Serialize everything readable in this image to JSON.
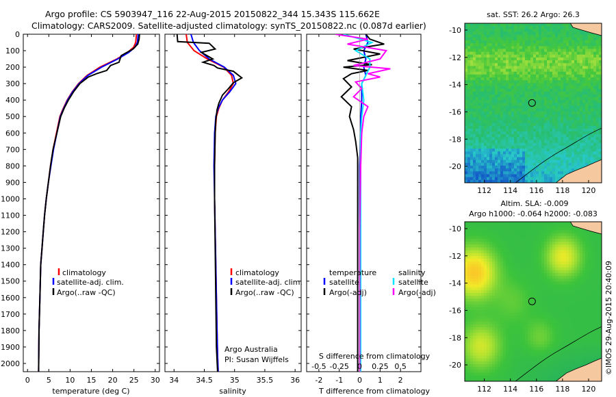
{
  "header": {
    "line1": "Argo profile: CS 5903947_116 22-Aug-2015 20150822_344 15.343S 115.662E",
    "line2": "Climatology: CARS2009. Satellite-adjusted climatology: synTS_20150822.nc (0.087d earlier)"
  },
  "colors": {
    "climatology": "#ff0000",
    "satellite": "#0000ff",
    "argo": "#000000",
    "salinity_satellite": "#00e5ff",
    "salinity_argo": "#ff00ff",
    "land": "#f5c8a0"
  },
  "shared_depth_ticks": [
    "0",
    "100",
    "200",
    "300",
    "400",
    "500",
    "600",
    "700",
    "800",
    "900",
    "1000",
    "1100",
    "1200",
    "1300",
    "1400",
    "1500",
    "1600",
    "1700",
    "1800",
    "1900",
    "2000"
  ],
  "chart_data": [
    {
      "type": "line",
      "id": "temperature-profile",
      "xlabel": "temperature (deg C)",
      "xlim": [
        -1,
        31
      ],
      "ylim": [
        2050,
        0
      ],
      "xticks": [
        "0",
        "5",
        "10",
        "15",
        "20",
        "25",
        "30"
      ],
      "legend": [
        "climatology",
        "satellite-adj. clim.",
        "Argo(..raw -QC)"
      ],
      "legend_placement": "lower-middle",
      "series": [
        {
          "name": "climatology",
          "color": "#ff0000",
          "x": [
            25.6,
            25.4,
            24.9,
            23.5,
            21.0,
            17.0,
            14.0,
            12.0,
            10.5,
            9.3,
            8.4,
            7.6,
            6.8,
            6.0,
            5.4,
            4.9,
            4.4,
            4.0,
            3.7,
            3.4,
            3.1,
            2.9,
            2.7,
            2.6
          ],
          "y": [
            0,
            50,
            80,
            110,
            150,
            200,
            250,
            300,
            350,
            400,
            450,
            500,
            600,
            700,
            800,
            900,
            1000,
            1100,
            1200,
            1300,
            1400,
            1600,
            1800,
            2050
          ]
        },
        {
          "name": "satellite-adj. clim.",
          "color": "#0000ff",
          "x": [
            26.0,
            25.8,
            25.2,
            23.8,
            21.2,
            17.4,
            14.2,
            12.1,
            10.6,
            9.4,
            8.5,
            7.7,
            6.9,
            6.1,
            5.5,
            4.9,
            4.4,
            4.0,
            3.7,
            3.4,
            3.1,
            2.9,
            2.7,
            2.6
          ],
          "y": [
            0,
            50,
            80,
            110,
            150,
            200,
            250,
            300,
            350,
            400,
            450,
            500,
            600,
            700,
            800,
            900,
            1000,
            1100,
            1200,
            1300,
            1400,
            1600,
            1800,
            2050
          ]
        },
        {
          "name": "Argo(..raw -QC)",
          "color": "#000000",
          "x": [
            26.3,
            26.2,
            25.9,
            24.8,
            22.0,
            21.5,
            19.5,
            18.6,
            16.2,
            14.3,
            12.3,
            10.8,
            9.6,
            8.6,
            7.8,
            6.9,
            6.0,
            5.4,
            4.9,
            4.4,
            4.0,
            3.7,
            3.4,
            3.1,
            2.9,
            2.7,
            2.6
          ],
          "y": [
            0,
            30,
            60,
            90,
            130,
            170,
            190,
            220,
            240,
            260,
            300,
            350,
            400,
            450,
            500,
            600,
            700,
            800,
            900,
            1000,
            1100,
            1200,
            1300,
            1400,
            1600,
            1800,
            2050
          ]
        }
      ]
    },
    {
      "type": "line",
      "id": "salinity-profile",
      "xlabel": "salinity",
      "xlim": [
        33.85,
        36.1
      ],
      "ylim": [
        2050,
        0
      ],
      "xticks": [
        "34",
        "34.5",
        "35",
        "35.5",
        "36"
      ],
      "legend": [
        "climatology",
        "satellite-adj. clim.",
        "Argo(..raw -QC)"
      ],
      "legend_placement": "lower-right",
      "annotation": [
        "Argo Australia",
        "PI: Susan Wijffels"
      ],
      "series": [
        {
          "name": "climatology",
          "color": "#ff0000",
          "x": [
            34.2,
            34.22,
            34.33,
            34.55,
            34.82,
            34.95,
            34.98,
            34.9,
            34.8,
            34.74,
            34.7,
            34.68,
            34.67,
            34.67,
            34.68,
            34.69,
            34.7,
            34.71,
            34.72,
            34.73
          ],
          "y": [
            0,
            50,
            100,
            150,
            200,
            250,
            300,
            350,
            400,
            450,
            500,
            600,
            800,
            1000,
            1200,
            1400,
            1600,
            1800,
            1950,
            2050
          ]
        },
        {
          "name": "satellite-adj. clim.",
          "color": "#0000ff",
          "x": [
            34.28,
            34.32,
            34.42,
            34.58,
            34.83,
            34.98,
            35.02,
            34.92,
            34.8,
            34.73,
            34.69,
            34.67,
            34.66,
            34.67,
            34.68,
            34.69,
            34.7,
            34.71,
            34.72,
            34.73
          ],
          "y": [
            0,
            50,
            100,
            150,
            200,
            250,
            300,
            350,
            400,
            450,
            500,
            600,
            800,
            1000,
            1200,
            1400,
            1600,
            1800,
            1950,
            2050
          ]
        },
        {
          "name": "Argo(..raw -QC)",
          "color": "#000000",
          "x": [
            34.05,
            34.06,
            34.58,
            34.68,
            34.45,
            34.64,
            34.48,
            34.66,
            34.72,
            34.98,
            35.05,
            35.12,
            34.98,
            34.9,
            34.8,
            34.74,
            34.71,
            34.69,
            34.68,
            34.67,
            34.67,
            34.68,
            34.69,
            34.7,
            34.72
          ],
          "y": [
            0,
            45,
            55,
            90,
            110,
            150,
            170,
            190,
            205,
            225,
            245,
            265,
            295,
            330,
            370,
            420,
            460,
            520,
            600,
            800,
            1000,
            1300,
            1600,
            1900,
            2050
          ]
        }
      ]
    },
    {
      "type": "line",
      "id": "difference-profile",
      "xlabel": "T difference from climatology",
      "xlabel2": "S difference from climatology",
      "xlim": [
        -2.6,
        3.0
      ],
      "ylim": [
        2050,
        0
      ],
      "xticks": [
        "-2",
        "-1",
        "0",
        "1",
        "2"
      ],
      "xticks2": [
        "-0.5",
        "-0.25",
        "0",
        "0.25",
        "0.5"
      ],
      "legend_headers": [
        "temperature",
        "salinity"
      ],
      "legend": [
        "satellite",
        "Argo(-adj)",
        "satellite",
        "Argo(-adj)"
      ],
      "series": [
        {
          "name": "temperature satellite",
          "color": "#0000ff",
          "x": [
            0.3,
            0.4,
            0.2,
            0.3,
            0.2,
            0.3,
            0.1,
            0.1,
            0.05,
            0.05,
            0.0,
            0.0,
            0.0,
            0.0,
            0.0
          ],
          "y": [
            0,
            50,
            100,
            150,
            200,
            250,
            300,
            400,
            500,
            600,
            800,
            1000,
            1400,
            1800,
            2050
          ]
        },
        {
          "name": "temperature Argo(-adj)",
          "color": "#000000",
          "x": [
            0.3,
            0.5,
            1.2,
            -0.3,
            1.0,
            -0.6,
            0.6,
            -0.8,
            0.4,
            -0.4,
            -0.8,
            -0.4,
            -0.9,
            -0.4,
            -0.5,
            -0.3,
            -0.2,
            -0.1,
            -0.1,
            -0.1,
            -0.1,
            -0.1
          ],
          "y": [
            0,
            30,
            60,
            90,
            120,
            160,
            185,
            200,
            220,
            240,
            270,
            320,
            380,
            440,
            500,
            580,
            650,
            750,
            900,
            1200,
            1600,
            2050
          ]
        },
        {
          "name": "salinity satellite",
          "color": "#00e5ff",
          "x": [
            -0.8,
            0.6,
            -0.2,
            0.5,
            0.5,
            0.3,
            0.1,
            0.2,
            0.1,
            0.05,
            0.05,
            0.05,
            0.05,
            0.05,
            0.05
          ],
          "y": [
            0,
            50,
            100,
            150,
            200,
            250,
            300,
            400,
            500,
            600,
            800,
            1000,
            1400,
            1800,
            2050
          ]
        },
        {
          "name": "salinity Argo(-adj)",
          "color": "#ff00ff",
          "x": [
            -1.2,
            0.4,
            -0.6,
            1.3,
            1.0,
            -0.3,
            1.5,
            0.4,
            1.0,
            -0.2,
            0.1,
            -0.3,
            0.4,
            0.2,
            0.1,
            0.05,
            0.0,
            0.0,
            0.0
          ],
          "y": [
            0,
            30,
            60,
            100,
            150,
            190,
            210,
            240,
            260,
            290,
            330,
            380,
            440,
            500,
            600,
            800,
            1200,
            1600,
            2050
          ]
        }
      ]
    },
    {
      "type": "heatmap",
      "id": "sst-map",
      "title": "sat. SST: 26.2  Argo: 26.3",
      "xlim": [
        110.5,
        121.0
      ],
      "ylim": [
        -21.2,
        -9.5
      ],
      "xticks": [
        "112",
        "114",
        "116",
        "118",
        "120"
      ],
      "yticks": [
        "-10",
        "-12",
        "-14",
        "-16",
        "-18",
        "-20"
      ],
      "float_position": {
        "lon": 115.662,
        "lat": -15.343
      }
    },
    {
      "type": "heatmap",
      "id": "sla-map",
      "title": "Altim. SLA: -0.009",
      "subtitle": "Argo h1000: -0.064  h2000: -0.083",
      "xlim": [
        110.5,
        121.0
      ],
      "ylim": [
        -21.2,
        -9.5
      ],
      "xticks": [
        "112",
        "114",
        "116",
        "118",
        "120"
      ],
      "yticks": [
        "-10",
        "-12",
        "-14",
        "-16",
        "-18",
        "-20"
      ],
      "float_position": {
        "lon": 115.662,
        "lat": -15.343
      }
    }
  ],
  "credit": "©IMOS 29-Aug-2015 20:40:09"
}
